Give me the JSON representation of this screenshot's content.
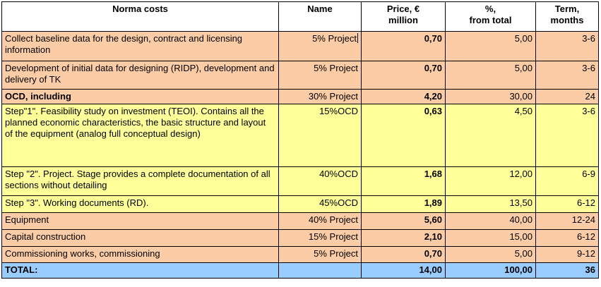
{
  "colors": {
    "orange": "#fbcca5",
    "yellow": "#ffff99",
    "blue": "#99ccff",
    "header": "#ffffff"
  },
  "headers": {
    "cost": "Norma costs",
    "name": "Name",
    "price_line1": "Price, €",
    "price_line2": "million",
    "percent_line1": "%,",
    "percent_line2": "from total",
    "term_line1": "Term,",
    "term_line2": "months"
  },
  "rows": [
    {
      "cost": "Collect baseline data for the design, contract and licensing information",
      "name": "5% Project",
      "price": "0,70",
      "percent": "5,00",
      "term": "3-6",
      "color": "orange",
      "bold": false
    },
    {
      "cost": "Development of initial data for designing (RIDP), development and delivery of TK",
      "name": "5% Project",
      "price": "0,70",
      "percent": "5,00",
      "term": "3-6",
      "color": "orange",
      "bold": false
    },
    {
      "cost": "OCD, including",
      "name": "30% Project",
      "price": "4,20",
      "percent": "30,00",
      "term": "24",
      "color": "orange",
      "bold": true
    },
    {
      "cost": "Step\"1\". Feasibility study on investment (TEOI). Contains all the planned economic characteristics, the basic structure and layout of the equipment (analog full conceptual design)",
      "name": "15%OCD",
      "price": "0,63",
      "percent": "4,50",
      "term": "3-6",
      "color": "yellow",
      "bold": false
    },
    {
      "cost": "Step \"2\". Project. Stage provides a complete documentation of all sections without detailing",
      "name": "40%OCD",
      "price": "1,68",
      "percent": "12,00",
      "term": "6-9",
      "color": "yellow",
      "bold": false
    },
    {
      "cost": "Step \"3\". Working documents (RD).",
      "name": "45%OCD",
      "price": "1,89",
      "percent": "13,50",
      "term": "6-12",
      "color": "yellow",
      "bold": false
    },
    {
      "cost": "Equipment",
      "name": "40% Project",
      "price": "5,60",
      "percent": "40,00",
      "term": "12-24",
      "color": "orange",
      "bold": false
    },
    {
      "cost": "Capital construction",
      "name": "15% Project",
      "price": "2,10",
      "percent": "15,00",
      "term": "6-12",
      "color": "orange",
      "bold": false
    },
    {
      "cost": "Commissioning works, commissioning",
      "name": "5% Project",
      "price": "0,70",
      "percent": "5,00",
      "term": "9-12",
      "color": "orange",
      "bold": false
    }
  ],
  "total": {
    "label": "TOTAL:",
    "name": "",
    "price": "14,00",
    "percent": "100,00",
    "term": "36",
    "color": "blue"
  }
}
